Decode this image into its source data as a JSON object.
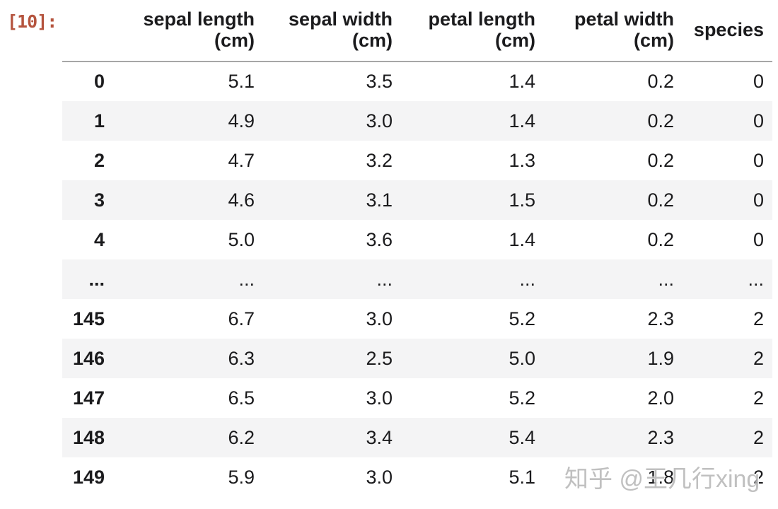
{
  "output_prompt": "[10]:",
  "table": {
    "index_header": "",
    "columns": [
      "sepal length\n(cm)",
      "sepal width\n(cm)",
      "petal length\n(cm)",
      "petal width\n(cm)",
      "species"
    ],
    "rows": [
      {
        "index": "0",
        "cells": [
          "5.1",
          "3.5",
          "1.4",
          "0.2",
          "0"
        ]
      },
      {
        "index": "1",
        "cells": [
          "4.9",
          "3.0",
          "1.4",
          "0.2",
          "0"
        ]
      },
      {
        "index": "2",
        "cells": [
          "4.7",
          "3.2",
          "1.3",
          "0.2",
          "0"
        ]
      },
      {
        "index": "3",
        "cells": [
          "4.6",
          "3.1",
          "1.5",
          "0.2",
          "0"
        ]
      },
      {
        "index": "4",
        "cells": [
          "5.0",
          "3.6",
          "1.4",
          "0.2",
          "0"
        ]
      },
      {
        "index": "...",
        "cells": [
          "...",
          "...",
          "...",
          "...",
          "..."
        ]
      },
      {
        "index": "145",
        "cells": [
          "6.7",
          "3.0",
          "5.2",
          "2.3",
          "2"
        ]
      },
      {
        "index": "146",
        "cells": [
          "6.3",
          "2.5",
          "5.0",
          "1.9",
          "2"
        ]
      },
      {
        "index": "147",
        "cells": [
          "6.5",
          "3.0",
          "5.2",
          "2.0",
          "2"
        ]
      },
      {
        "index": "148",
        "cells": [
          "6.2",
          "3.4",
          "5.4",
          "2.3",
          "2"
        ]
      },
      {
        "index": "149",
        "cells": [
          "5.9",
          "3.0",
          "5.1",
          "1.8",
          "2"
        ]
      }
    ]
  },
  "watermark": "知乎 @王几行xing",
  "colors": {
    "prompt_color": "#b5543e",
    "stripe_color": "#f4f4f5",
    "text_color": "#1b1b1d",
    "header_border": "#a6a6a6"
  }
}
